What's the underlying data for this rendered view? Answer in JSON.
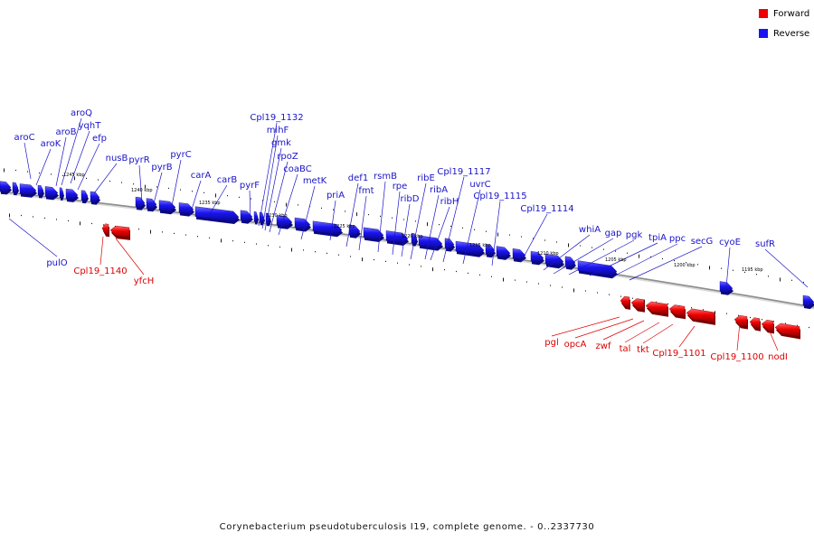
{
  "legend": [
    {
      "label": "Forward",
      "color": "#ee0000"
    },
    {
      "label": "Reverse",
      "color": "#1a14f0"
    }
  ],
  "caption": "Corynebacterium pseudotuberculosis I19, complete genome. - 0..2337730",
  "colors": {
    "forward": "#ee0000",
    "reverse": "#1a14f0",
    "backbone": "#9a9a9a"
  },
  "scale_labels": [
    "1245 kbp",
    "1240 kbp",
    "1235 kbp",
    "1230 kbp",
    "1225 kbp",
    "1220 kbp",
    "1215 kbp",
    "1210 kbp",
    "1205 kbp",
    "1200 kbp",
    "1195 kbp"
  ],
  "reverse_genes": [
    "aroC",
    "aroK",
    "aroB",
    "aroQ",
    "yqhT",
    "efp",
    "nusB",
    "pyrR",
    "pyrB",
    "pyrC",
    "carA",
    "carB",
    "pyrF",
    "Cpl19_1132",
    "mihF",
    "gmk",
    "rpoZ",
    "coaBC",
    "metK",
    "priA",
    "def1",
    "fmt",
    "rsmB",
    "rpe",
    "ribD",
    "ribE",
    "ribA",
    "ribH",
    "Cpl19_1117",
    "uvrC",
    "Cpl19_1115",
    "Cpl19_1114",
    "whiA",
    "gap",
    "pgk",
    "tpiA",
    "ppc",
    "secG",
    "cyoE",
    "sufR",
    "pulO"
  ],
  "forward_genes": [
    "Cpl19_1140",
    "yfcH",
    "pgl",
    "opcA",
    "zwf",
    "tal",
    "tkt",
    "Cpl19_1101",
    "Cpl19_1100",
    "nodI"
  ]
}
